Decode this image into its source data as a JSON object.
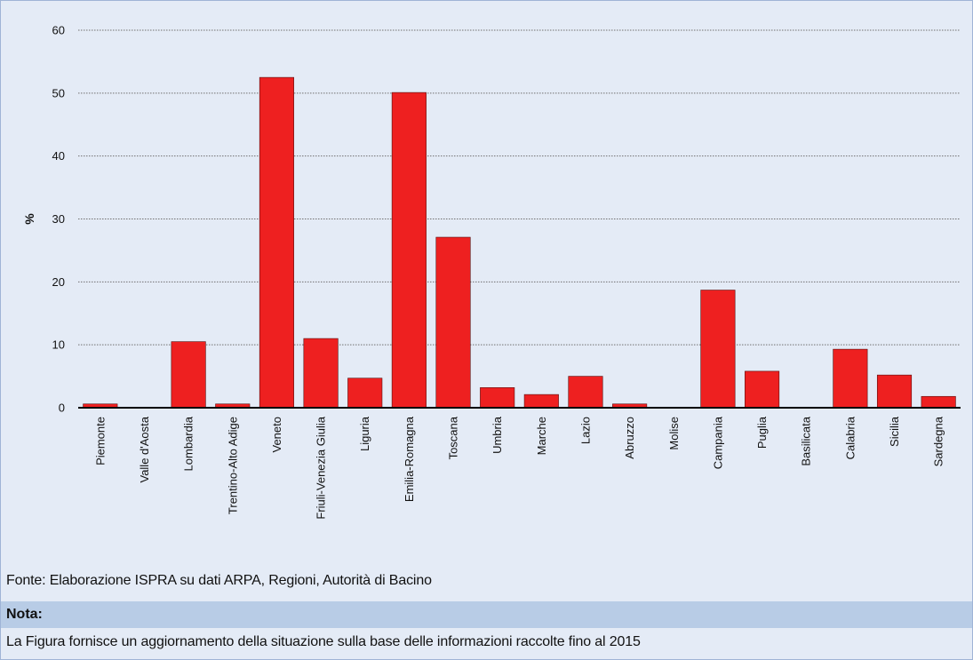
{
  "chart_data": {
    "type": "bar",
    "ylabel": "%",
    "xlabel": "",
    "ylim": [
      0,
      60
    ],
    "yticks": [
      0,
      10,
      20,
      30,
      40,
      50,
      60
    ],
    "grid": true,
    "bar_color": "#ee2020",
    "categories": [
      "Piemonte",
      "Valle d'Aosta",
      "Lombardia",
      "Trentino-Alto Adige",
      "Veneto",
      "Friuli-Venezia Giulia",
      "Liguria",
      "Emilia-Romagna",
      "Toscana",
      "Umbria",
      "Marche",
      "Lazio",
      "Abruzzo",
      "Molise",
      "Campania",
      "Puglia",
      "Basilicata",
      "Calabria",
      "Sicilia",
      "Sardegna"
    ],
    "values": [
      0.6,
      0,
      10.5,
      0.6,
      52.5,
      11.0,
      4.7,
      50.1,
      27.1,
      3.2,
      2.1,
      5.0,
      0.6,
      0,
      18.7,
      5.8,
      0,
      9.3,
      5.2,
      1.8
    ]
  },
  "source_text": "Fonte: Elaborazione ISPRA su dati ARPA, Regioni, Autorità di Bacino",
  "note": {
    "title": "Nota:",
    "text": "La Figura fornisce un aggiornamento della situazione sulla base delle informazioni raccolte fino al 2015"
  }
}
